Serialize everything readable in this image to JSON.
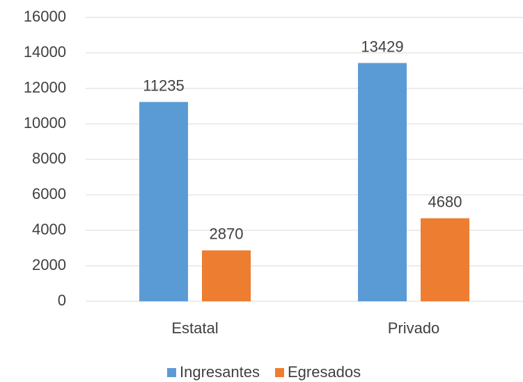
{
  "chart_data": {
    "type": "bar",
    "categories": [
      "Estatal",
      "Privado"
    ],
    "series": [
      {
        "name": "Ingresantes",
        "color": "#5b9bd5",
        "values": [
          11235,
          13429
        ]
      },
      {
        "name": "Egresados",
        "color": "#ed7d31",
        "values": [
          2870,
          4680
        ]
      }
    ],
    "ylim": [
      0,
      16000
    ],
    "yticks": [
      0,
      2000,
      4000,
      6000,
      8000,
      10000,
      12000,
      14000,
      16000
    ],
    "grid": true,
    "legend": "bottom",
    "data_labels": true
  }
}
